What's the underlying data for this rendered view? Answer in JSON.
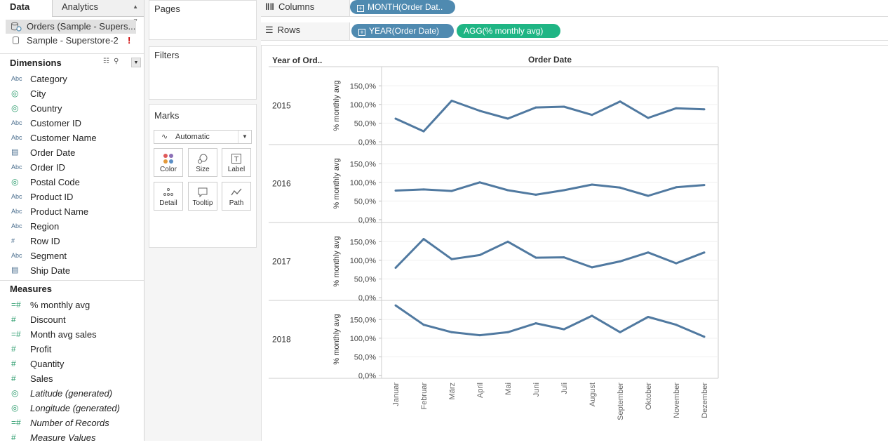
{
  "tabs": {
    "data": "Data",
    "analytics": "Analytics"
  },
  "sources": [
    {
      "label": "Orders (Sample - Supers..."
    },
    {
      "label": "Sample - Superstore-2",
      "warning": "!"
    }
  ],
  "dimensions": {
    "title": "Dimensions",
    "items": [
      {
        "icon": "Abc",
        "label": "Category"
      },
      {
        "icon": "globe",
        "label": "City"
      },
      {
        "icon": "globe",
        "label": "Country"
      },
      {
        "icon": "Abc",
        "label": "Customer ID"
      },
      {
        "icon": "Abc",
        "label": "Customer Name"
      },
      {
        "icon": "calendar",
        "label": "Order Date"
      },
      {
        "icon": "Abc",
        "label": "Order ID"
      },
      {
        "icon": "globe",
        "label": "Postal Code"
      },
      {
        "icon": "Abc",
        "label": "Product ID"
      },
      {
        "icon": "Abc",
        "label": "Product Name"
      },
      {
        "icon": "Abc",
        "label": "Region"
      },
      {
        "icon": "#",
        "label": "Row ID"
      },
      {
        "icon": "Abc",
        "label": "Segment"
      },
      {
        "icon": "calendar",
        "label": "Ship Date"
      }
    ]
  },
  "measures": {
    "title": "Measures",
    "items": [
      {
        "icon": "=#",
        "label": "% monthly avg"
      },
      {
        "icon": "#",
        "label": "Discount"
      },
      {
        "icon": "=#",
        "label": "Month avg sales"
      },
      {
        "icon": "#",
        "label": "Profit"
      },
      {
        "icon": "#",
        "label": "Quantity"
      },
      {
        "icon": "#",
        "label": "Sales"
      },
      {
        "icon": "globe",
        "label": "Latitude (generated)",
        "italic": true
      },
      {
        "icon": "globe",
        "label": "Longitude (generated)",
        "italic": true
      },
      {
        "icon": "=#",
        "label": "Number of Records",
        "italic": true
      },
      {
        "icon": "#",
        "label": "Measure Values",
        "italic": true
      }
    ]
  },
  "cards": {
    "pages": "Pages",
    "filters": "Filters",
    "marks": "Marks"
  },
  "marks": {
    "type": "Automatic",
    "buttons": [
      "Color",
      "Size",
      "Label",
      "Detail",
      "Tooltip",
      "Path"
    ]
  },
  "shelves": {
    "columns_label": "Columns",
    "rows_label": "Rows",
    "columns_pills": [
      "MONTH(Order Dat.."
    ],
    "rows_pills": [
      "YEAR(Order Date)",
      "AGG(% monthly avg)"
    ]
  },
  "colors": {
    "line": "#5079a0",
    "pill_blue": "#4f8ab0",
    "pill_green": "#1fb584"
  },
  "chart_data": {
    "type": "line",
    "row_header": "Year of Ord..",
    "column_header": "Order Date",
    "ylabel": "% monthly avg",
    "yticks": [
      "0,0%",
      "50,0%",
      "100,0%",
      "150,0%"
    ],
    "ylim": [
      0,
      190
    ],
    "categories": [
      "Januar",
      "Februar",
      "März",
      "April",
      "Mai",
      "Juni",
      "Juli",
      "August",
      "September",
      "Oktober",
      "November",
      "Dezember"
    ],
    "series": [
      {
        "name": "2015",
        "values": [
          62,
          28,
          110,
          83,
          62,
          92,
          94,
          72,
          108,
          64,
          90,
          87
        ]
      },
      {
        "name": "2016",
        "values": [
          78,
          81,
          77,
          100,
          79,
          67,
          79,
          94,
          86,
          64,
          87,
          93
        ]
      },
      {
        "name": "2017",
        "values": [
          80,
          157,
          103,
          114,
          150,
          107,
          108,
          81,
          97,
          121,
          92,
          121
        ]
      },
      {
        "name": "2018",
        "values": [
          188,
          136,
          116,
          108,
          116,
          140,
          124,
          160,
          116,
          157,
          136,
          104
        ]
      }
    ]
  }
}
